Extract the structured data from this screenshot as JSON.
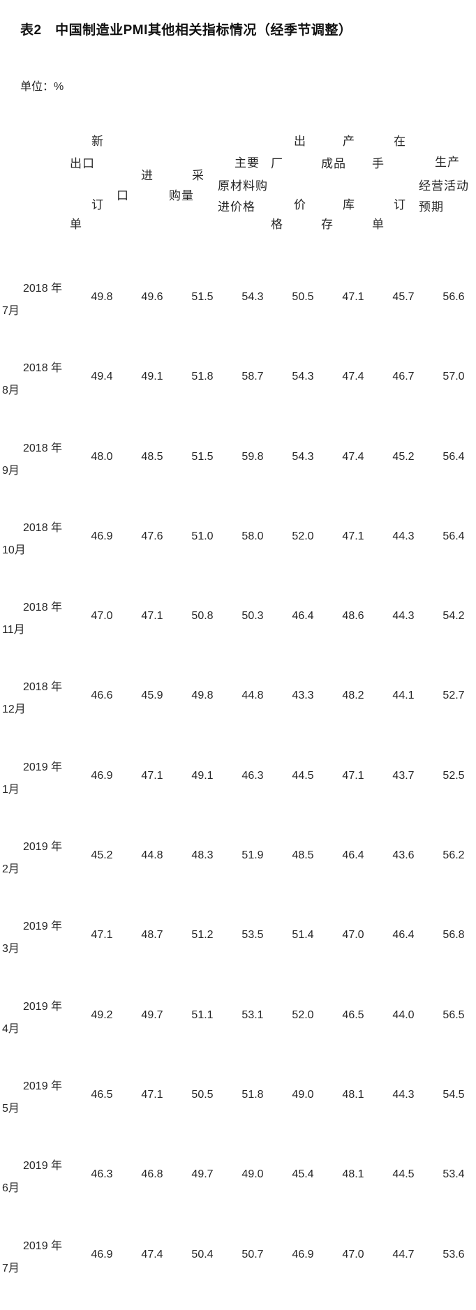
{
  "page": {
    "title": "表2　中国制造业PMI其他相关指标情况（经季节调整）",
    "unit_label": "单位：%"
  },
  "table": {
    "column_headers": [
      {
        "name": "新出口订单",
        "lines": [
          "新",
          "出口",
          "订",
          "单"
        ]
      },
      {
        "name": "进口",
        "lines": [
          "进",
          "口"
        ]
      },
      {
        "name": "采购量",
        "lines": [
          "采",
          "购量"
        ]
      },
      {
        "name": "主要原材料购进价格",
        "lines": [
          "主要",
          "原材料购",
          "进价格"
        ]
      },
      {
        "name": "出厂价格",
        "lines": [
          "出",
          "厂",
          "价",
          "格"
        ]
      },
      {
        "name": "产成品库存",
        "lines": [
          "产",
          "成品",
          "库",
          "存"
        ]
      },
      {
        "name": "在手订单",
        "lines": [
          "在",
          "手",
          "订",
          "单"
        ]
      },
      {
        "name": "生产经营活动预期",
        "lines": [
          "生产",
          "经营活动",
          "预期"
        ]
      }
    ],
    "rows": [
      {
        "year": "2018 年",
        "month": "7月",
        "values": [
          "49.8",
          "49.6",
          "51.5",
          "54.3",
          "50.5",
          "47.1",
          "45.7",
          "56.6"
        ]
      },
      {
        "year": "2018 年",
        "month": "8月",
        "values": [
          "49.4",
          "49.1",
          "51.8",
          "58.7",
          "54.3",
          "47.4",
          "46.7",
          "57.0"
        ]
      },
      {
        "year": "2018 年",
        "month": "9月",
        "values": [
          "48.0",
          "48.5",
          "51.5",
          "59.8",
          "54.3",
          "47.4",
          "45.2",
          "56.4"
        ]
      },
      {
        "year": "2018 年",
        "month": "10月",
        "values": [
          "46.9",
          "47.6",
          "51.0",
          "58.0",
          "52.0",
          "47.1",
          "44.3",
          "56.4"
        ]
      },
      {
        "year": "2018 年",
        "month": "11月",
        "values": [
          "47.0",
          "47.1",
          "50.8",
          "50.3",
          "46.4",
          "48.6",
          "44.3",
          "54.2"
        ]
      },
      {
        "year": "2018 年",
        "month": "12月",
        "values": [
          "46.6",
          "45.9",
          "49.8",
          "44.8",
          "43.3",
          "48.2",
          "44.1",
          "52.7"
        ]
      },
      {
        "year": "2019 年",
        "month": "1月",
        "values": [
          "46.9",
          "47.1",
          "49.1",
          "46.3",
          "44.5",
          "47.1",
          "43.7",
          "52.5"
        ]
      },
      {
        "year": "2019 年",
        "month": "2月",
        "values": [
          "45.2",
          "44.8",
          "48.3",
          "51.9",
          "48.5",
          "46.4",
          "43.6",
          "56.2"
        ]
      },
      {
        "year": "2019 年",
        "month": "3月",
        "values": [
          "47.1",
          "48.7",
          "51.2",
          "53.5",
          "51.4",
          "47.0",
          "46.4",
          "56.8"
        ]
      },
      {
        "year": "2019 年",
        "month": "4月",
        "values": [
          "49.2",
          "49.7",
          "51.1",
          "53.1",
          "52.0",
          "46.5",
          "44.0",
          "56.5"
        ]
      },
      {
        "year": "2019 年",
        "month": "5月",
        "values": [
          "46.5",
          "47.1",
          "50.5",
          "51.8",
          "49.0",
          "48.1",
          "44.3",
          "54.5"
        ]
      },
      {
        "year": "2019 年",
        "month": "6月",
        "values": [
          "46.3",
          "46.8",
          "49.7",
          "49.0",
          "45.4",
          "48.1",
          "44.5",
          "53.4"
        ]
      },
      {
        "year": "2019 年",
        "month": "7月",
        "values": [
          "46.9",
          "47.4",
          "50.4",
          "50.7",
          "46.9",
          "47.0",
          "44.7",
          "53.6"
        ]
      }
    ]
  },
  "chart_data": {
    "type": "table",
    "title": "表2 中国制造业PMI其他相关指标情况（经季节调整）",
    "unit": "%",
    "columns": [
      "新出口订单",
      "进口",
      "采购量",
      "主要原材料购进价格",
      "出厂价格",
      "产成品库存",
      "在手订单",
      "生产经营活动预期"
    ],
    "row_labels": [
      "2018年7月",
      "2018年8月",
      "2018年9月",
      "2018年10月",
      "2018年11月",
      "2018年12月",
      "2019年1月",
      "2019年2月",
      "2019年3月",
      "2019年4月",
      "2019年5月",
      "2019年6月",
      "2019年7月"
    ],
    "values": [
      [
        49.8,
        49.6,
        51.5,
        54.3,
        50.5,
        47.1,
        45.7,
        56.6
      ],
      [
        49.4,
        49.1,
        51.8,
        58.7,
        54.3,
        47.4,
        46.7,
        57.0
      ],
      [
        48.0,
        48.5,
        51.5,
        59.8,
        54.3,
        47.4,
        45.2,
        56.4
      ],
      [
        46.9,
        47.6,
        51.0,
        58.0,
        52.0,
        47.1,
        44.3,
        56.4
      ],
      [
        47.0,
        47.1,
        50.8,
        50.3,
        46.4,
        48.6,
        44.3,
        54.2
      ],
      [
        46.6,
        45.9,
        49.8,
        44.8,
        43.3,
        48.2,
        44.1,
        52.7
      ],
      [
        46.9,
        47.1,
        49.1,
        46.3,
        44.5,
        47.1,
        43.7,
        52.5
      ],
      [
        45.2,
        44.8,
        48.3,
        51.9,
        48.5,
        46.4,
        43.6,
        56.2
      ],
      [
        47.1,
        48.7,
        51.2,
        53.5,
        51.4,
        47.0,
        46.4,
        56.8
      ],
      [
        49.2,
        49.7,
        51.1,
        53.1,
        52.0,
        46.5,
        44.0,
        56.5
      ],
      [
        46.5,
        47.1,
        50.5,
        51.8,
        49.0,
        48.1,
        44.3,
        54.5
      ],
      [
        46.3,
        46.8,
        49.7,
        49.0,
        45.4,
        48.1,
        44.5,
        53.4
      ],
      [
        46.9,
        47.4,
        50.4,
        50.7,
        46.9,
        47.0,
        44.7,
        53.6
      ]
    ]
  }
}
